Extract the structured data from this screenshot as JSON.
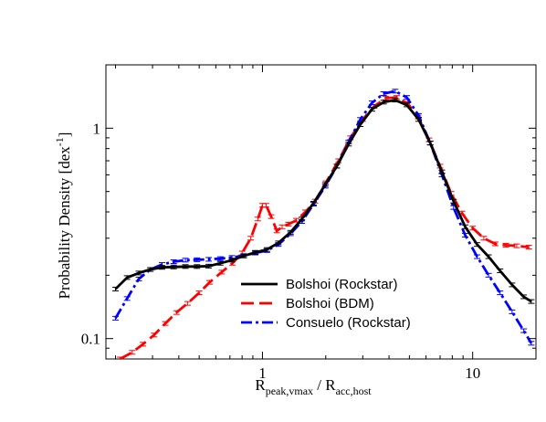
{
  "chart_data": {
    "type": "line",
    "title": "",
    "xlabel": {
      "main": "R",
      "sub1": "peak,vmax",
      "mid": " / R",
      "sub2": "acc,host"
    },
    "ylabel": {
      "main": "Probability Density [dex",
      "sup": "-1",
      "end": "]"
    },
    "xscale": "log",
    "yscale": "log",
    "xlim": [
      0.18,
      20
    ],
    "ylim": [
      0.08,
      2.0
    ],
    "xticks": [
      {
        "value": 1,
        "label": "1"
      },
      {
        "value": 10,
        "label": "10"
      }
    ],
    "yticks": [
      {
        "value": 0.1,
        "label": "0.1"
      },
      {
        "value": 1,
        "label": "1"
      }
    ],
    "grid": false,
    "legend_position": "bottom-center",
    "series": [
      {
        "name": "Bolshoi (Rockstar)",
        "color": "#000000",
        "dash": "solid",
        "x": [
          0.2,
          0.227,
          0.258,
          0.293,
          0.333,
          0.378,
          0.43,
          0.488,
          0.555,
          0.63,
          0.716,
          0.814,
          0.924,
          1.05,
          1.19,
          1.36,
          1.54,
          1.75,
          1.99,
          2.26,
          2.57,
          2.92,
          3.32,
          3.77,
          4.28,
          4.86,
          5.53,
          6.28,
          7.14,
          8.11,
          9.21,
          10.5,
          11.9,
          13.5,
          15.4,
          17.5,
          19.0
        ],
        "y": [
          0.172,
          0.195,
          0.205,
          0.213,
          0.218,
          0.219,
          0.22,
          0.22,
          0.221,
          0.228,
          0.236,
          0.247,
          0.257,
          0.265,
          0.285,
          0.32,
          0.37,
          0.44,
          0.54,
          0.66,
          0.84,
          1.04,
          1.23,
          1.33,
          1.36,
          1.29,
          1.1,
          0.85,
          0.62,
          0.45,
          0.34,
          0.28,
          0.245,
          0.21,
          0.18,
          0.158,
          0.15
        ]
      },
      {
        "name": "Bolshoi (BDM)",
        "color": "#ff0000",
        "dash": "long-dash",
        "x": [
          0.21,
          0.24,
          0.27,
          0.305,
          0.345,
          0.39,
          0.44,
          0.5,
          0.56,
          0.64,
          0.72,
          0.8,
          0.88,
          0.95,
          1.0,
          1.04,
          1.1,
          1.17,
          1.24,
          1.33,
          1.45,
          1.6,
          1.78,
          2.0,
          2.3,
          2.62,
          3.0,
          3.4,
          3.85,
          4.35,
          4.9,
          5.5,
          6.2,
          7.0,
          7.9,
          8.9,
          10.0,
          11.3,
          12.8,
          14.4,
          16.2,
          18.5
        ],
        "y": [
          0.08,
          0.086,
          0.094,
          0.104,
          0.118,
          0.133,
          0.147,
          0.165,
          0.185,
          0.207,
          0.228,
          0.255,
          0.3,
          0.37,
          0.43,
          0.43,
          0.38,
          0.325,
          0.34,
          0.35,
          0.365,
          0.4,
          0.45,
          0.55,
          0.7,
          0.9,
          1.1,
          1.27,
          1.39,
          1.4,
          1.31,
          1.13,
          0.88,
          0.66,
          0.49,
          0.395,
          0.335,
          0.3,
          0.282,
          0.278,
          0.276,
          0.272
        ]
      },
      {
        "name": "Consuelo (Rockstar)",
        "color": "#0000ff",
        "dash": "dash-dot",
        "x": [
          0.2,
          0.227,
          0.258,
          0.293,
          0.333,
          0.378,
          0.43,
          0.488,
          0.555,
          0.63,
          0.716,
          0.814,
          0.924,
          1.05,
          1.19,
          1.36,
          1.54,
          1.75,
          1.99,
          2.26,
          2.57,
          2.92,
          3.32,
          3.77,
          4.28,
          4.86,
          5.53,
          6.28,
          7.14,
          8.11,
          9.21,
          10.5,
          11.9,
          13.5,
          15.4,
          17.5,
          19.0
        ],
        "y": [
          0.125,
          0.155,
          0.192,
          0.213,
          0.225,
          0.232,
          0.236,
          0.237,
          0.238,
          0.24,
          0.243,
          0.248,
          0.255,
          0.262,
          0.28,
          0.315,
          0.36,
          0.435,
          0.53,
          0.66,
          0.86,
          1.1,
          1.32,
          1.46,
          1.5,
          1.4,
          1.15,
          0.85,
          0.6,
          0.42,
          0.31,
          0.245,
          0.2,
          0.165,
          0.134,
          0.109,
          0.095
        ]
      }
    ]
  }
}
